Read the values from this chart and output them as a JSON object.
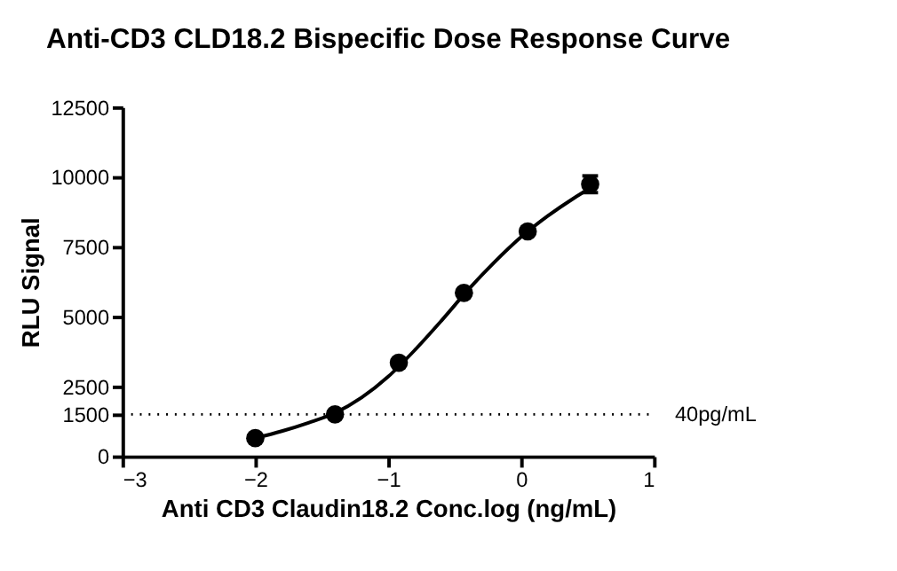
{
  "chart_data": {
    "type": "scatter",
    "title": "Anti-CD3 CLD18.2  Bispecific Dose Response Curve",
    "xlabel": "Anti CD3 Claudin18.2 Conc.log (ng/mL)",
    "ylabel": "RLU Signal",
    "x": [
      -2.0,
      -1.4,
      -0.92,
      -0.43,
      0.05,
      0.52
    ],
    "series": [
      {
        "type": "scatter",
        "color": "#000000",
        "values": [
          650,
          1500,
          3350,
          5850,
          8050,
          9740
        ],
        "errors": [
          null,
          null,
          null,
          null,
          null,
          300
        ],
        "marker": "circle"
      },
      {
        "type": "line",
        "color": "#000000",
        "x": [
          -2.0,
          -1.8,
          -1.6,
          -1.4,
          -1.2,
          -1.0,
          -0.8,
          -0.6,
          -0.4,
          -0.2,
          0.0,
          0.2,
          0.4,
          0.52
        ],
        "values": [
          650,
          900,
          1200,
          1550,
          2100,
          2850,
          3800,
          4850,
          5950,
          6950,
          7850,
          8600,
          9250,
          9600
        ],
        "line_style": "solid",
        "marker": "none"
      }
    ],
    "xlim": [
      -3,
      1
    ],
    "xticks": [
      -3,
      -2,
      -1,
      0,
      1
    ],
    "ylim": [
      0,
      12500
    ],
    "yticks": [
      0,
      1500,
      2500,
      5000,
      7500,
      10000,
      12500
    ],
    "ref_lines": [
      {
        "axis": "y",
        "value": 1500,
        "label": "40pg/mL",
        "line_style": "dotted",
        "color": "#000000"
      }
    ],
    "grid": false
  }
}
